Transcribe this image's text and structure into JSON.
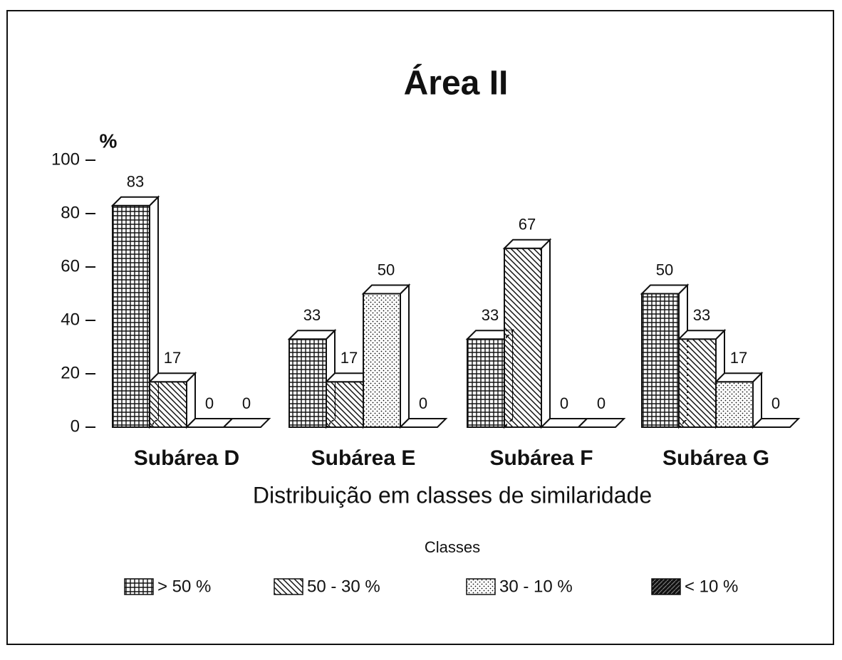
{
  "chart_data": {
    "type": "bar3d",
    "title": "Área II",
    "y_label": "%",
    "x_label": "Distribuição em classes de similaridade",
    "legend_title": "Classes",
    "categories": [
      "Subárea D",
      "Subárea E",
      "Subárea F",
      "Subárea G"
    ],
    "series": [
      {
        "name": "> 50 %",
        "color": "#111111",
        "values": [
          83,
          33,
          33,
          50
        ]
      },
      {
        "name": "50 - 30 %",
        "color": "#111111",
        "values": [
          17,
          17,
          67,
          33
        ]
      },
      {
        "name": "30 - 10 %",
        "color": "#111111",
        "values": [
          0,
          50,
          0,
          17
        ]
      },
      {
        "name": "< 10 %",
        "color": "#111111",
        "values": [
          0,
          0,
          0,
          0
        ]
      }
    ],
    "ylim": [
      0,
      100
    ],
    "yticks": [
      0,
      20,
      40,
      60,
      80,
      100
    ]
  }
}
